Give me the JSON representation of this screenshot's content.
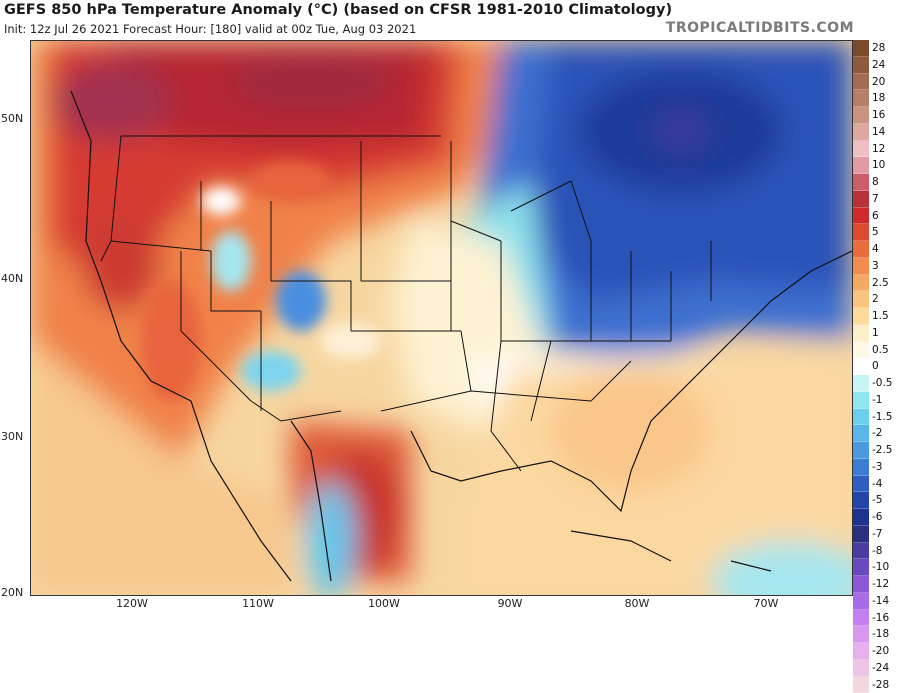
{
  "header": {
    "title": "GEFS 850 hPa Temperature Anomaly (°C) (based on CFSR 1981-2010 Climatology)",
    "subtitle": "Init: 12z Jul 26 2021   Forecast Hour: [180]   valid at 00z Tue, Aug 03 2021",
    "brand": "TROPICALTIDBITS.COM"
  },
  "axes": {
    "lat_labels": [
      "50N",
      "40N",
      "30N",
      "20N"
    ],
    "lon_labels": [
      "120W",
      "110W",
      "100W",
      "90W",
      "80W",
      "70W"
    ]
  },
  "colorbar": {
    "levels": [
      "28",
      "24",
      "20",
      "18",
      "16",
      "14",
      "12",
      "10",
      "8",
      "7",
      "6",
      "5",
      "4",
      "3",
      "2.5",
      "2",
      "1.5",
      "1",
      "0.5",
      "0",
      "-0.5",
      "-1",
      "-1.5",
      "-2",
      "-2.5",
      "-3",
      "-4",
      "-5",
      "-6",
      "-7",
      "-8",
      "-10",
      "-12",
      "-14",
      "-16",
      "-18",
      "-20",
      "-24",
      "-28"
    ],
    "colors": [
      "#7a4a2a",
      "#8e5a3c",
      "#a26c52",
      "#b67f69",
      "#ca9482",
      "#dda8a0",
      "#eec0c4",
      "#e29aa5",
      "#cc5e6a",
      "#b8303a",
      "#d02a2a",
      "#de4a30",
      "#ea6c3c",
      "#f28c4e",
      "#f5aa64",
      "#f8c47e",
      "#fbdc9e",
      "#fdf0c8",
      "#fff8e4",
      "#ffffff",
      "#c8f4f4",
      "#8ee8ee",
      "#6ad0ec",
      "#58b6e8",
      "#4a9ae0",
      "#3c7cd2",
      "#2e5ec2",
      "#2444a8",
      "#1e3290",
      "#2a2f80",
      "#4a3ca0",
      "#6a48c0",
      "#8a58d8",
      "#a86ce8",
      "#c480ee",
      "#d898f0",
      "#e6b0ee",
      "#eec4e6",
      "#f2d8dc"
    ]
  }
}
